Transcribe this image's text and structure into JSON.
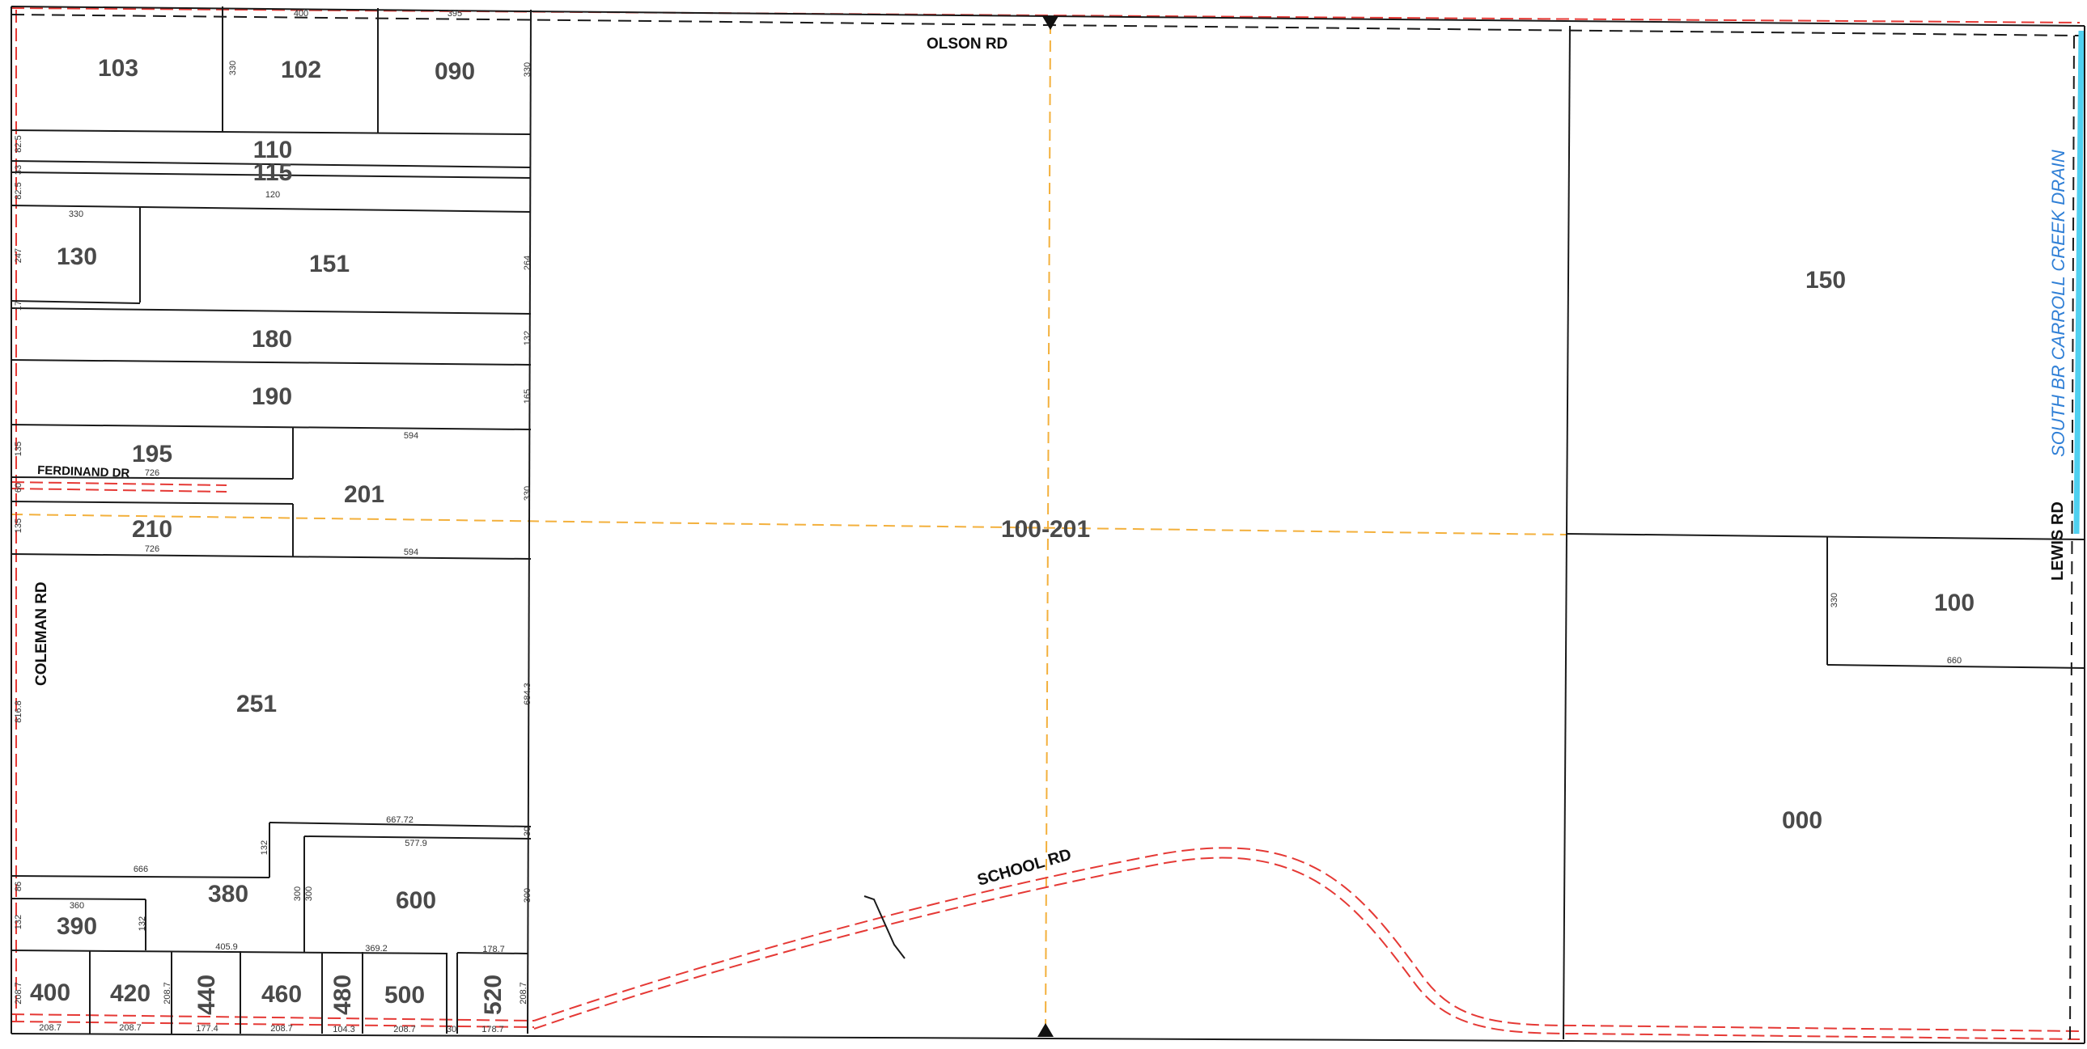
{
  "colors": {
    "parcel_line": "#1a1a1a",
    "road_row": "#e53935",
    "section_line": "#f3b03c",
    "drain": "#4fd0f0",
    "drain_label": "#2f7fd6",
    "parcel_number": "#4a4a4a"
  },
  "roads": {
    "olson": "OLSON RD",
    "coleman": "COLEMAN RD",
    "ferdinand": "FERDINAND DR",
    "school": "SCHOOL RD",
    "lewis": "LEWIS RD"
  },
  "drain_label": "SOUTH BR CARROLL CREEK DRAIN",
  "section_id": "100-201",
  "parcels": {
    "p103": "103",
    "p102": "102",
    "p090": "090",
    "p110": "110",
    "p115": "115",
    "p130": "130",
    "p151": "151",
    "p180": "180",
    "p190": "190",
    "p195": "195",
    "p201": "201",
    "p210": "210",
    "p251": "251",
    "p380": "380",
    "p390": "390",
    "p600": "600",
    "p400": "400",
    "p420": "420",
    "p440": "440",
    "p460": "460",
    "p480": "480",
    "p500": "500",
    "p520": "520",
    "p150": "150",
    "p100": "100",
    "p000": "000"
  },
  "dimensions": {
    "d400_top": "400",
    "d395_top": "395",
    "d330_102": "330",
    "d330_090": "330",
    "d82_5a": "82.5",
    "d33": "33",
    "d82_5b": "82.5",
    "d120": "120",
    "d330_130": "330",
    "d247": "247",
    "d17": "17",
    "d264": "264",
    "d132_180": "132",
    "d165": "165",
    "d594_top": "594",
    "d135": "135",
    "d726_fd": "726",
    "d60": "60",
    "d330_201": "330",
    "d135b": "135",
    "d726_210": "726",
    "d594_bot": "594",
    "d816_8": "816.8",
    "d684_3": "684.3",
    "d667_72": "667.72",
    "d577_9": "577.9",
    "d132_380": "132",
    "d30_r": "30",
    "d666": "666",
    "d86": "86",
    "d360": "360",
    "d132_390a": "132",
    "d132_390b": "132",
    "d300a": "300",
    "d300b": "300",
    "d300_600": "300",
    "d405_9": "405.9",
    "d369_2": "369.2",
    "d178_7_top": "178.7",
    "d208_7_l": "208.7",
    "d208_7_420": "208.7",
    "d208_7_520": "208.7",
    "b208_7a": "208.7",
    "b208_7b": "208.7",
    "b177_4": "177.4",
    "b208_7c": "208.7",
    "b104_3": "104.3",
    "b208_7d": "208.7",
    "b30": "30",
    "b178_7": "178.7",
    "d330_100": "330",
    "d660": "660"
  }
}
